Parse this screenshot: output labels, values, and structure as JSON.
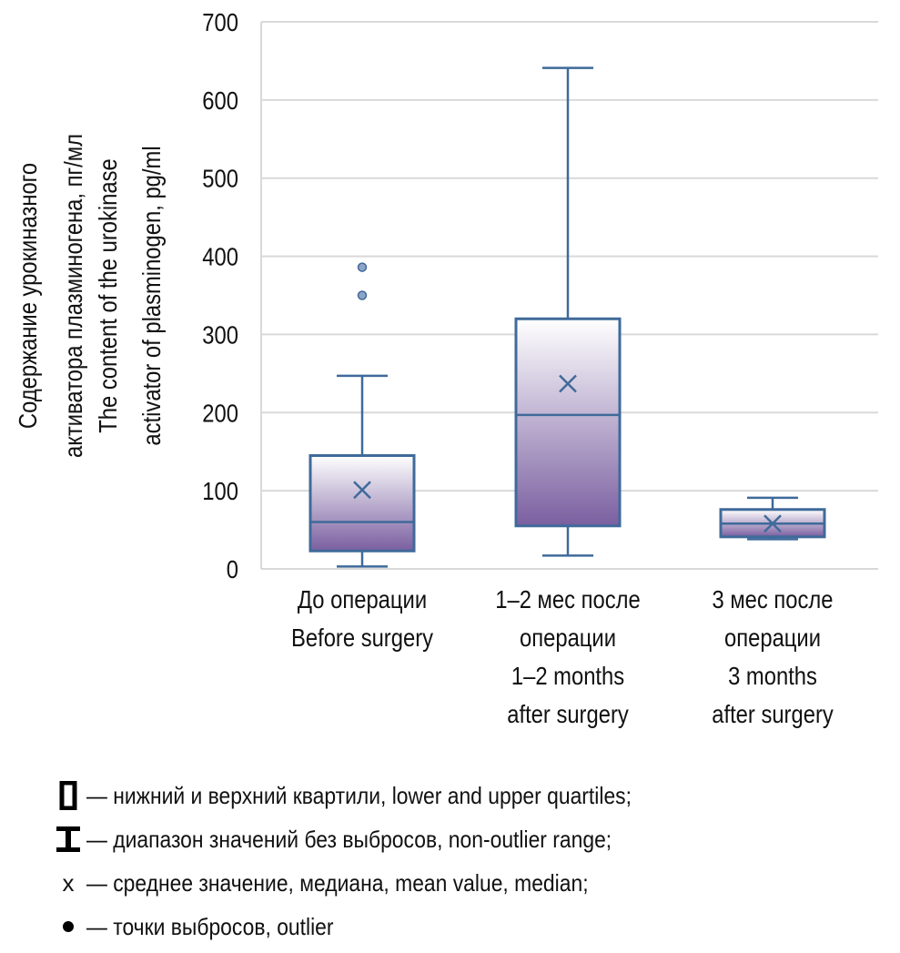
{
  "chart_data": {
    "type": "boxplot",
    "ylabel_lines": [
      "Содержание урокиназного",
      "активатора плазминогена, пг/мл",
      "The content of the urokinase",
      "activator of plasminogen, pg/ml"
    ],
    "ylim": [
      0,
      700
    ],
    "yticks": [
      0,
      100,
      200,
      300,
      400,
      500,
      600,
      700
    ],
    "grid": true,
    "categories": [
      {
        "lines": [
          "До операции",
          "Before surgery"
        ]
      },
      {
        "lines": [
          "1–2 мес после",
          "операции",
          "1–2 months",
          "after surgery"
        ]
      },
      {
        "lines": [
          "3 мес после",
          "операции",
          "3 months",
          "after surgery"
        ]
      }
    ],
    "boxes": [
      {
        "whisker_low": 3,
        "q1": 23,
        "median": 60,
        "q3": 145,
        "whisker_high": 247,
        "mean": 101,
        "outliers": [
          350,
          386
        ]
      },
      {
        "whisker_low": 17,
        "q1": 55,
        "median": 197,
        "q3": 320,
        "whisker_high": 641,
        "mean": 237,
        "outliers": []
      },
      {
        "whisker_low": 38,
        "q1": 41,
        "median": 58,
        "q3": 76,
        "whisker_high": 91,
        "mean": 58,
        "outliers": []
      }
    ],
    "colors": {
      "line": "#3f6a9a",
      "fill_dark": "#7a5fa0",
      "fill_light": "#ffffff",
      "grid": "#d9d9d9"
    }
  },
  "legend": [
    {
      "symbol": "box-icon",
      "text": "— нижний и верхний квартили, lower and upper quartiles;"
    },
    {
      "symbol": "whisker-icon",
      "text": "— диапазон значений без выбросов, non-outlier range;"
    },
    {
      "symbol": "x",
      "text": "— среднее значение, медиана, mean value, median;"
    },
    {
      "symbol": "dot-icon",
      "text": "— точки выбросов, outlier"
    }
  ]
}
